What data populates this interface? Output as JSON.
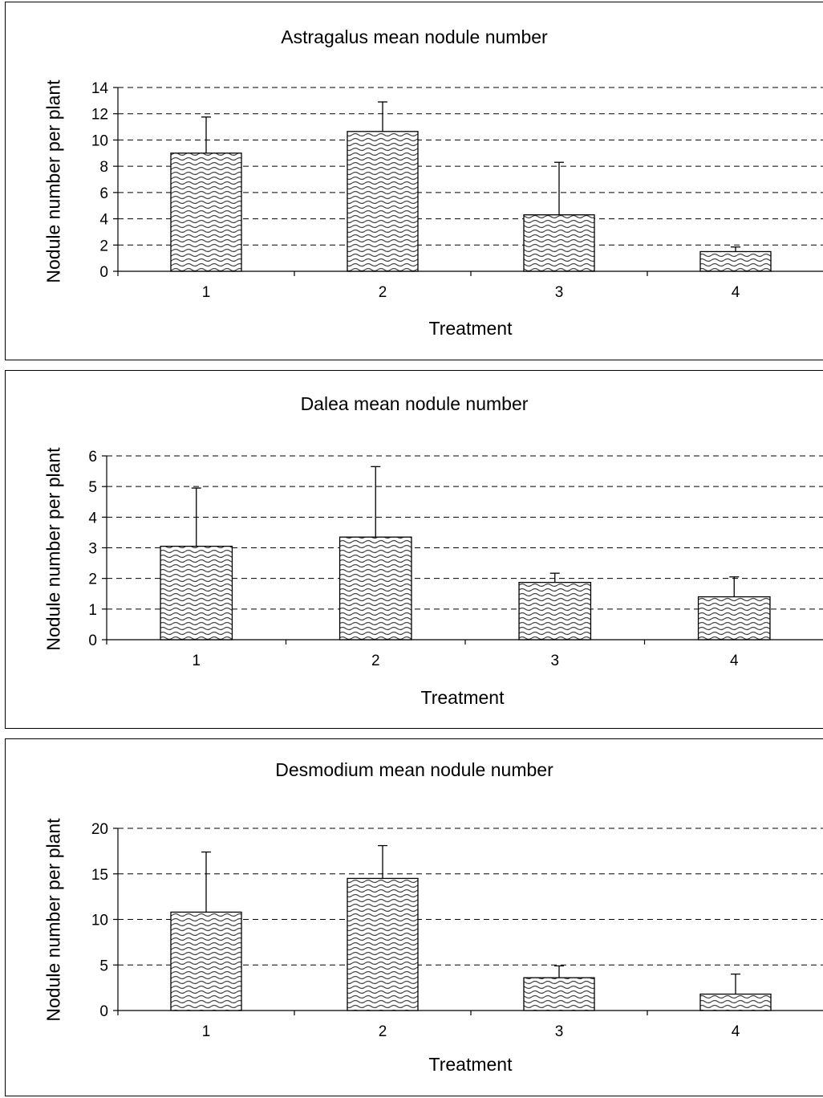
{
  "chart_data": [
    {
      "type": "bar",
      "title": "Astragalus mean nodule number",
      "xlabel": "Treatment",
      "ylabel": "Nodule number per plant",
      "categories": [
        "1",
        "2",
        "3",
        "4"
      ],
      "values": [
        9.0,
        10.65,
        4.3,
        1.5
      ],
      "error_upper": [
        2.75,
        2.25,
        4.0,
        0.35
      ],
      "ylim": [
        0,
        14
      ],
      "yticks": [
        0,
        2,
        4,
        6,
        8,
        10,
        12,
        14
      ],
      "grid": true,
      "legend": "none"
    },
    {
      "type": "bar",
      "title": "Dalea mean nodule number",
      "xlabel": "Treatment",
      "ylabel": "Nodule number per plant",
      "categories": [
        "1",
        "2",
        "3",
        "4"
      ],
      "values": [
        3.05,
        3.35,
        1.87,
        1.4
      ],
      "error_upper": [
        1.9,
        2.3,
        0.3,
        0.65
      ],
      "ylim": [
        0,
        6
      ],
      "yticks": [
        0,
        1,
        2,
        3,
        4,
        5,
        6
      ],
      "grid": true,
      "legend": "none"
    },
    {
      "type": "bar",
      "title": "Desmodium mean nodule number",
      "xlabel": "Treatment",
      "ylabel": "Nodule number per plant",
      "categories": [
        "1",
        "2",
        "3",
        "4"
      ],
      "values": [
        10.8,
        14.5,
        3.6,
        1.8
      ],
      "error_upper": [
        6.6,
        3.6,
        1.3,
        2.2
      ],
      "ylim": [
        0,
        20
      ],
      "yticks": [
        0,
        5,
        10,
        15,
        20
      ],
      "grid": true,
      "legend": "none"
    }
  ]
}
